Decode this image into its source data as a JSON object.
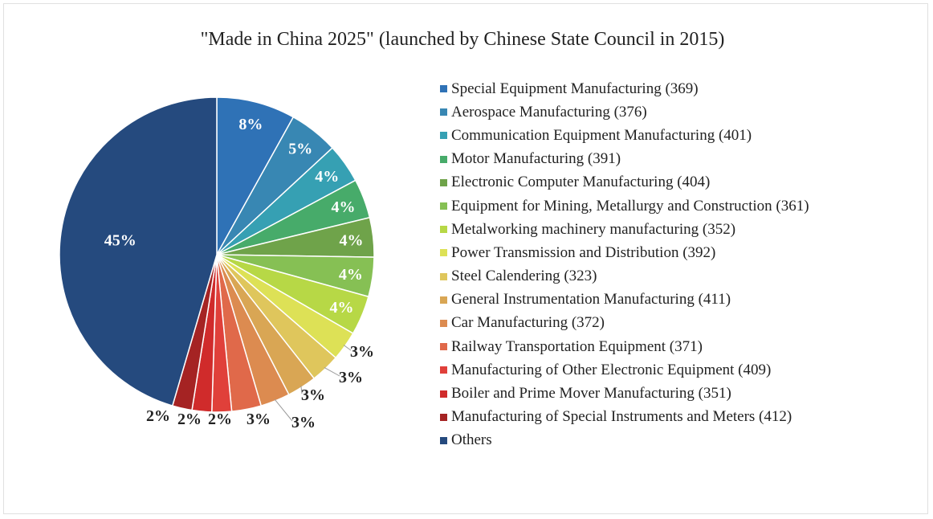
{
  "chart_data": {
    "type": "pie",
    "title": "\"Made in China 2025\" (launched by Chinese State Council in 2015)",
    "legend_position": "right",
    "slices": [
      {
        "label": "Special Equipment Manufacturing (369)",
        "value": 8,
        "value_label": "8%",
        "color": "#2f72b6"
      },
      {
        "label": "Aerospace Manufacturing (376)",
        "value": 5,
        "value_label": "5%",
        "color": "#3887b3"
      },
      {
        "label": "Communication Equipment Manufacturing (401)",
        "value": 4,
        "value_label": "4%",
        "color": "#36a0b3"
      },
      {
        "label": "Motor Manufacturing (391)",
        "value": 4,
        "value_label": "4%",
        "color": "#47ab6a"
      },
      {
        "label": "Electronic Computer Manufacturing (404)",
        "value": 4,
        "value_label": "4%",
        "color": "#6fa34a"
      },
      {
        "label": "Equipment for Mining, Metallurgy and Construction (361)",
        "value": 4,
        "value_label": "4%",
        "color": "#86c054"
      },
      {
        "label": "Metalworking machinery manufacturing (352)",
        "value": 4,
        "value_label": "4%",
        "color": "#b7d846"
      },
      {
        "label": "Power Transmission and Distribution (392)",
        "value": 3,
        "value_label": "3%",
        "color": "#dde156"
      },
      {
        "label": "Steel Calendering (323)",
        "value": 3,
        "value_label": "3%",
        "color": "#dfc65c"
      },
      {
        "label": "General Instrumentation Manufacturing (411)",
        "value": 3,
        "value_label": "3%",
        "color": "#d9a654"
      },
      {
        "label": "Car Manufacturing (372)",
        "value": 3,
        "value_label": "3%",
        "color": "#dc8b50"
      },
      {
        "label": "Railway Transportation Equipment (371)",
        "value": 3,
        "value_label": "3%",
        "color": "#e0694a"
      },
      {
        "label": "Manufacturing of Other Electronic Equipment (409)",
        "value": 2,
        "value_label": "2%",
        "color": "#e0403a"
      },
      {
        "label": "Boiler and Prime Mover Manufacturing (351)",
        "value": 2,
        "value_label": "2%",
        "color": "#d02b2b"
      },
      {
        "label": "Manufacturing of Special Instruments and Meters (412)",
        "value": 2,
        "value_label": "2%",
        "color": "#a52323"
      },
      {
        "label": "Others",
        "value": 45,
        "value_label": "45%",
        "color": "#254a7e"
      }
    ]
  }
}
